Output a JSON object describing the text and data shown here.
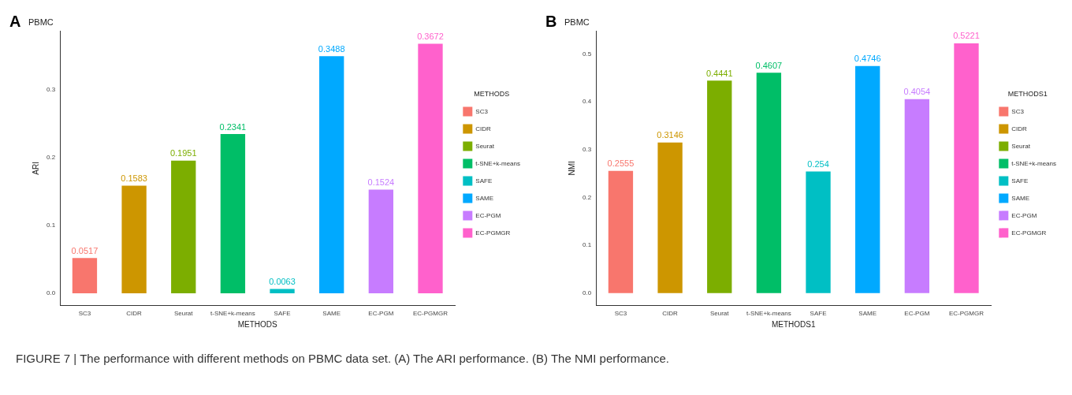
{
  "chart_data": [
    {
      "type": "bar",
      "title": "PBMC",
      "xlabel": "METHODS",
      "ylabel": "ARI",
      "legend_title": "METHODS",
      "legend": "right",
      "data_labels": true,
      "grid": false,
      "categories": [
        "SC3",
        "CIDR",
        "Seurat",
        "t-SNE+k-means",
        "SAFE",
        "SAME",
        "EC-PGM",
        "EC-PGMGR"
      ],
      "series": [
        {
          "name": "SC3",
          "color": "#f8766d",
          "values": [
            0.0517,
            null,
            null,
            null,
            null,
            null,
            null,
            null
          ]
        },
        {
          "name": "CIDR",
          "color": "#cd9600",
          "values": [
            null,
            0.1583,
            null,
            null,
            null,
            null,
            null,
            null
          ]
        },
        {
          "name": "Seurat",
          "color": "#7cae00",
          "values": [
            null,
            null,
            0.1951,
            null,
            null,
            null,
            null,
            null
          ]
        },
        {
          "name": "t-SNE+k-means",
          "color": "#00be67",
          "values": [
            null,
            null,
            null,
            0.2341,
            null,
            null,
            null,
            null
          ]
        },
        {
          "name": "SAFE",
          "color": "#00bfc4",
          "values": [
            null,
            null,
            null,
            null,
            0.0063,
            null,
            null,
            null
          ]
        },
        {
          "name": "SAME",
          "color": "#00a9ff",
          "values": [
            null,
            null,
            null,
            null,
            null,
            0.3488,
            null,
            null
          ]
        },
        {
          "name": "EC-PGM",
          "color": "#c77cff",
          "values": [
            null,
            null,
            null,
            null,
            null,
            null,
            0.1524,
            null
          ]
        },
        {
          "name": "EC-PGMGR",
          "color": "#ff61cc",
          "values": [
            null,
            null,
            null,
            null,
            null,
            null,
            null,
            0.3672
          ]
        }
      ],
      "ylim": [
        -0.018,
        0.386
      ],
      "yticks": [
        {
          "value": 0,
          "label": "0.0"
        },
        0.1,
        0.2,
        0.3
      ],
      "annotations": [
        "A",
        "FIGURE 7 | The performance with different methods on PBMC data set. (A) The ARI performance. (B) The NMI performance."
      ]
    },
    {
      "type": "bar",
      "title": "PBMC",
      "xlabel": "METHODS1",
      "ylabel": "NMI",
      "legend_title": "METHODS1",
      "legend": "right",
      "data_labels": true,
      "grid": false,
      "categories": [
        "SC3",
        "CIDR",
        "Seurat",
        "t-SNE+k-means",
        "SAFE",
        "SAME",
        "EC-PGM",
        "EC-PGMGR"
      ],
      "series": [
        {
          "name": "SC3",
          "color": "#f8766d",
          "values": [
            0.2555,
            null,
            null,
            null,
            null,
            null,
            null,
            null
          ]
        },
        {
          "name": "CIDR",
          "color": "#cd9600",
          "values": [
            null,
            0.3146,
            null,
            null,
            null,
            null,
            null,
            null
          ]
        },
        {
          "name": "Seurat",
          "color": "#7cae00",
          "values": [
            null,
            null,
            0.4441,
            null,
            null,
            null,
            null,
            null
          ]
        },
        {
          "name": "t-SNE+k-means",
          "color": "#00be67",
          "values": [
            null,
            null,
            null,
            0.4607,
            null,
            null,
            null,
            null
          ]
        },
        {
          "name": "SAFE",
          "color": "#00bfc4",
          "values": [
            null,
            null,
            null,
            null,
            0.254,
            null,
            null,
            null
          ]
        },
        {
          "name": "SAME",
          "color": "#00a9ff",
          "values": [
            null,
            null,
            null,
            null,
            null,
            0.4746,
            null,
            null
          ]
        },
        {
          "name": "EC-PGM",
          "color": "#c77cff",
          "values": [
            null,
            null,
            null,
            null,
            null,
            null,
            0.4054,
            null
          ]
        },
        {
          "name": "EC-PGMGR",
          "color": "#ff61cc",
          "values": [
            null,
            null,
            null,
            null,
            null,
            null,
            null,
            0.5221
          ]
        }
      ],
      "ylim": [
        -0.026,
        0.548
      ],
      "yticks": [
        {
          "value": 0,
          "label": "0.0"
        },
        0.1,
        0.2,
        0.3,
        0.4,
        0.5
      ],
      "annotations": [
        "B"
      ]
    }
  ]
}
